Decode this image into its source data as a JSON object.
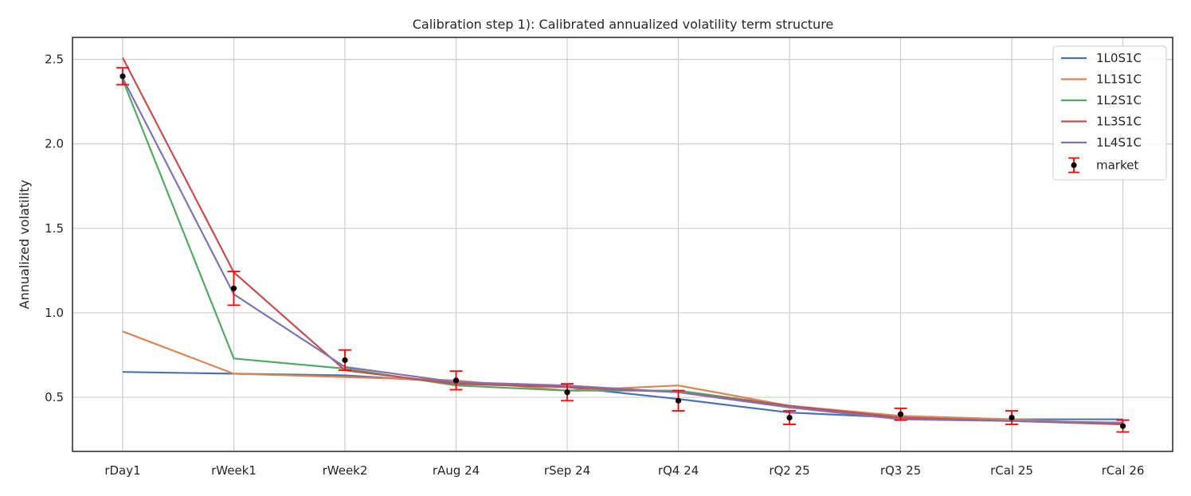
{
  "chart_data": {
    "type": "line",
    "title": "Calibration step 1): Calibrated annualized volatility term structure",
    "xlabel": "",
    "ylabel": "Annualized volatility",
    "categories": [
      "rDay1",
      "rWeek1",
      "rWeek2",
      "rAug 24",
      "rSep 24",
      "rQ4 24",
      "rQ2 25",
      "rQ3 25",
      "rCal 25",
      "rCal 26"
    ],
    "ylim": [
      0.18,
      2.63
    ],
    "yticks": [
      0.5,
      1.0,
      1.5,
      2.0,
      2.5
    ],
    "ytick_labels": [
      "0.5",
      "1.0",
      "1.5",
      "2.0",
      "2.5"
    ],
    "grid": true,
    "legend_position": "top-right",
    "series": [
      {
        "name": "1L0S1C",
        "color": "#4c72b0",
        "values": [
          0.65,
          0.64,
          0.63,
          0.59,
          0.56,
          0.49,
          0.41,
          0.38,
          0.37,
          0.37
        ]
      },
      {
        "name": "1L1S1C",
        "color": "#dd8452",
        "values": [
          0.89,
          0.64,
          0.62,
          0.6,
          0.54,
          0.57,
          0.45,
          0.39,
          0.37,
          0.34
        ]
      },
      {
        "name": "1L2S1C",
        "color": "#55a868",
        "values": [
          2.38,
          0.73,
          0.67,
          0.57,
          0.54,
          0.54,
          0.45,
          0.38,
          0.36,
          0.35
        ]
      },
      {
        "name": "1L3S1C",
        "color": "#c44e52",
        "values": [
          2.51,
          1.24,
          0.66,
          0.58,
          0.56,
          0.53,
          0.45,
          0.38,
          0.36,
          0.34
        ]
      },
      {
        "name": "1L4S1C",
        "color": "#8172b3",
        "values": [
          2.39,
          1.11,
          0.68,
          0.59,
          0.57,
          0.53,
          0.44,
          0.37,
          0.36,
          0.35
        ]
      }
    ],
    "market": {
      "name": "market",
      "marker_color": "#000000",
      "errorbar_color": "#ff0000",
      "values": [
        2.4,
        1.145,
        0.72,
        0.6,
        0.53,
        0.48,
        0.38,
        0.4,
        0.38,
        0.33
      ],
      "errors": [
        0.05,
        0.1,
        0.06,
        0.055,
        0.05,
        0.06,
        0.04,
        0.035,
        0.04,
        0.035
      ]
    }
  }
}
